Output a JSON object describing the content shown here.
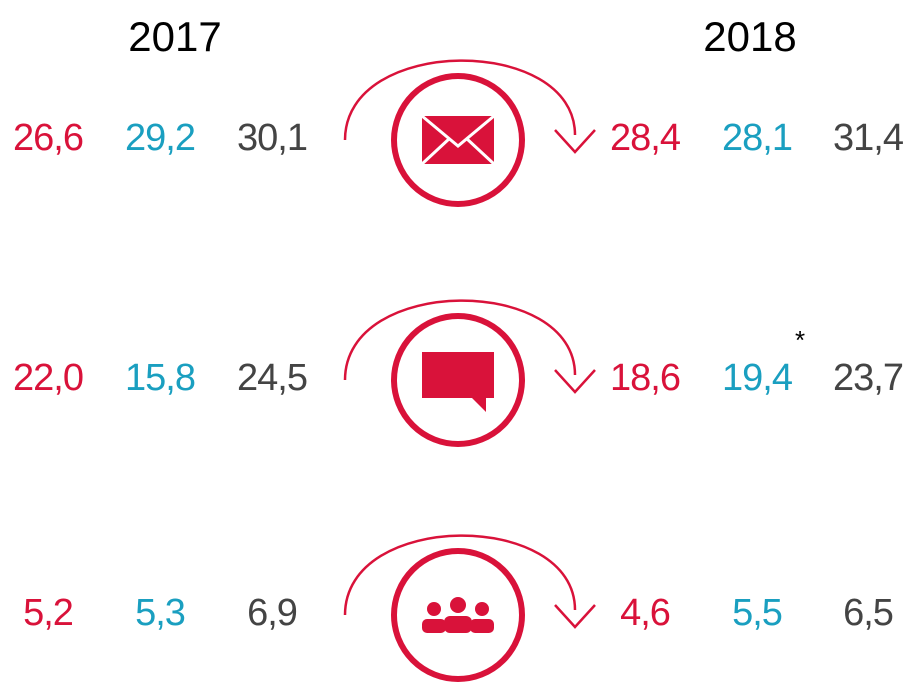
{
  "years": [
    "2017",
    "2018"
  ],
  "rows": [
    {
      "y2017": [
        "26,6",
        "29,2",
        "30,1"
      ],
      "y2018": [
        "28,4",
        "28,1",
        "31,4"
      ]
    },
    {
      "y2017": [
        "22,0",
        "15,8",
        "24,5"
      ],
      "y2018": [
        "18,6",
        "19,4",
        "23,7"
      ],
      "note": "*"
    },
    {
      "y2017": [
        "5,2",
        "5,3",
        "6,9"
      ],
      "y2018": [
        "4,6",
        "5,5",
        "6,5"
      ]
    }
  ]
}
